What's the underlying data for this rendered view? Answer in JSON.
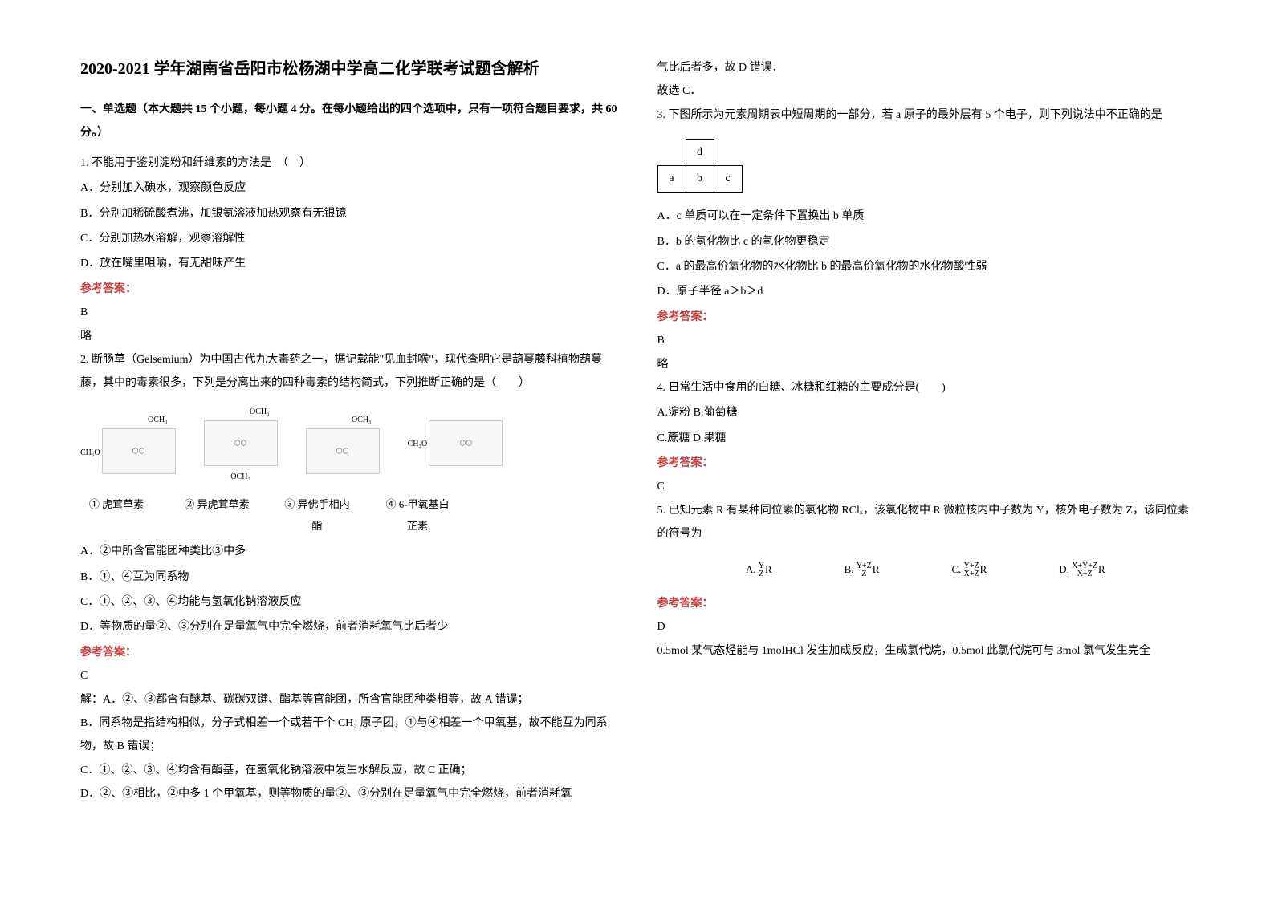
{
  "title": "2020-2021 学年湖南省岳阳市松杨湖中学高二化学联考试题含解析",
  "part1_head": "一、单选题（本大题共 15 个小题，每小题 4 分。在每小题给出的四个选项中，只有一项符合题目要求，共 60 分。）",
  "q1": {
    "stem": "1. 不能用于鉴别淀粉和纤维素的方法是　（　）",
    "A": "A．分别加入碘水，观察颜色反应",
    "B": "B．分别加稀硫酸煮沸，加银氨溶液加热观察有无银镜",
    "C": "C．分别加热水溶解，观察溶解性",
    "D": "D．放在嘴里咀嚼，有无甜味产生",
    "ans_label": "参考答案：",
    "ans": "B",
    "note": "略"
  },
  "q2": {
    "stem": "2. 断肠草（Gelsemium）为中国古代九大毒药之一，据记载能\"见血封喉\"，现代查明它是葫蔓藤科植物葫蔓藤，其中的毒素很多，下列是分离出来的四种毒素的结构简式，下列推断正确的是（　　）",
    "mol_top": [
      "OCH₃",
      "OCH₃",
      "OCH₃",
      ""
    ],
    "mol_side": [
      "CH₃O",
      "",
      "",
      "CH₃O"
    ],
    "mol_bot": [
      "",
      "OCH₃",
      "",
      ""
    ],
    "cap1": "① 虎茸草素",
    "cap2": "② 异虎茸草素",
    "cap3": "③ 异佛手相内酯",
    "cap4": "④ 6-甲氧基白芷素",
    "A": "A．②中所含官能团种类比③中多",
    "B": "B．①、④互为同系物",
    "C": "C．①、②、③、④均能与氢氧化钠溶液反应",
    "D": "D．等物质的量②、③分别在足量氧气中完全燃烧，前者消耗氧气比后者少",
    "ans_label": "参考答案：",
    "ans": "C",
    "expA": "解：A．②、③都含有醚基、碳碳双键、酯基等官能团，所含官能团种类相等，故 A 错误；",
    "expB": "B．同系物是指结构相似，分子式相差一个或若干个 CH₂ 原子团，①与④相差一个甲氧基，故不能互为同系物，故 B 错误；",
    "expC": "C．①、②、③、④均含有酯基，在氢氧化钠溶液中发生水解反应，故 C 正确；",
    "expD": "D．②、③相比，②中多 1 个甲氧基，则等物质的量②、③分别在足量氧气中完全燃烧，前者消耗氧"
  },
  "col2_top1": "气比后者多，故 D 错误．",
  "col2_top2": "故选 C．",
  "q3": {
    "stem": "3. 下图所示为元素周期表中短周期的一部分，若 a 原子的最外层有 5 个电子，则下列说法中不正确的是",
    "cells": {
      "d": "d",
      "a": "a",
      "b": "b",
      "c": "c"
    },
    "A": "A．c 单质可以在一定条件下置换出 b 单质",
    "B": "B．b 的氢化物比 c 的氢化物更稳定",
    "C": "C．a 的最高价氧化物的水化物比 b 的最高价氧化物的水化物酸性弱",
    "D": "D．原子半径 a＞b＞d",
    "ans_label": "参考答案：",
    "ans": "B",
    "note": "略"
  },
  "q4": {
    "stem": "4. 日常生活中食用的白糖、冰糖和红糖的主要成分是(　　)",
    "A": "A.淀粉 B.葡萄糖",
    "C": "C.蔗糖 D.果糖",
    "ans_label": "参考答案：",
    "ans": "C"
  },
  "q5": {
    "stem": "5. 已知元素 R 有某种同位素的氯化物 RClₓ，该氯化物中 R 微粒核内中子数为 Y，核外电子数为 Z，该同位素的符号为",
    "optA": "A.",
    "optB": "B.",
    "optC": "C.",
    "optD": "D.",
    "ans_label": "参考答案：",
    "ans": "D",
    "tail": "0.5mol 某气态烃能与 1molHCl 发生加成反应，生成氯代烷，0.5mol 此氯代烷可与 3mol 氯气发生完全"
  },
  "colors": {
    "answer": "#c04040",
    "text": "#000000",
    "bg": "#ffffff"
  }
}
